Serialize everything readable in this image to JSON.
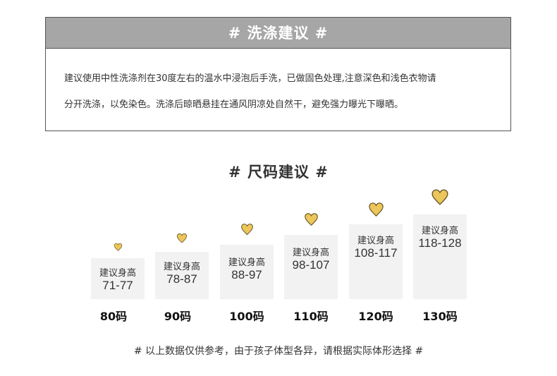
{
  "washing": {
    "title": "# 洗涤建议 #",
    "line1": "建议使用中性洗涤剂在30度左右的温水中浸泡后手洗，已做固色处理,注意深色和浅色衣物请",
    "line2": "分开洗涤，以免染色。洗涤后晾晒悬挂在通风阴凉处自然干，避免强力曝光下曝晒。"
  },
  "size_guide": {
    "title": "# 尺码建议 #",
    "heart_color": "#ecc65a",
    "box_color": "#f2f2f2",
    "items": [
      {
        "label": "建议身高",
        "range": "71-77",
        "size": "80码"
      },
      {
        "label": "建议身高",
        "range": "78-87",
        "size": "90码"
      },
      {
        "label": "建议身高",
        "range": "88-97",
        "size": "100码"
      },
      {
        "label": "建议身高",
        "range": "98-107",
        "size": "110码"
      },
      {
        "label": "建议身高",
        "range": "108-117",
        "size": "120码"
      },
      {
        "label": "建议身高",
        "range": "118-128",
        "size": "130码"
      }
    ]
  },
  "note": "# 以上数据仅供参考，由于孩子体型各异，请根据实际体形选择 #"
}
